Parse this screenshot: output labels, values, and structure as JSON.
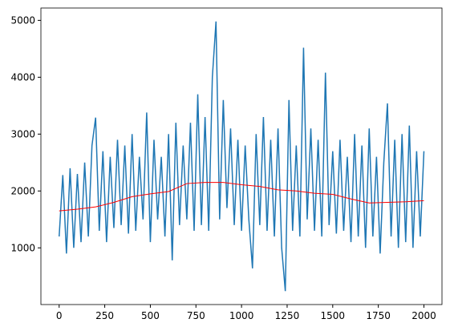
{
  "chart_data": {
    "type": "line",
    "series": [
      {
        "color": "#1f77b4",
        "x": [
          0,
          20,
          40,
          60,
          80,
          100,
          120,
          140,
          160,
          180,
          200,
          220,
          240,
          260,
          280,
          300,
          320,
          340,
          360,
          380,
          400,
          420,
          440,
          460,
          480,
          500,
          520,
          540,
          560,
          580,
          600,
          620,
          640,
          660,
          680,
          700,
          720,
          740,
          760,
          780,
          800,
          820,
          840,
          860,
          880,
          900,
          920,
          940,
          960,
          980,
          1000,
          1020,
          1040,
          1060,
          1080,
          1100,
          1120,
          1140,
          1160,
          1180,
          1200,
          1220,
          1240,
          1260,
          1280,
          1300,
          1320,
          1340,
          1360,
          1380,
          1400,
          1420,
          1440,
          1460,
          1480,
          1500,
          1520,
          1540,
          1560,
          1580,
          1600,
          1620,
          1640,
          1660,
          1680,
          1700,
          1720,
          1740,
          1760,
          1780,
          1800,
          1820,
          1840,
          1860,
          1880,
          1900,
          1920,
          1940,
          1960,
          1980,
          2000
        ],
        "values": [
          1200,
          2280,
          900,
          2400,
          1000,
          2300,
          1100,
          2500,
          1200,
          2800,
          3290,
          1300,
          2700,
          1100,
          2600,
          1350,
          2900,
          1400,
          2800,
          1250,
          3000,
          1300,
          2600,
          1500,
          3380,
          1100,
          2900,
          1500,
          2600,
          1200,
          3000,
          780,
          3200,
          1400,
          2800,
          1500,
          3200,
          1300,
          3700,
          1400,
          3300,
          1300,
          4000,
          4980,
          1500,
          3600,
          1700,
          3100,
          1400,
          2900,
          1300,
          2800,
          1500,
          640,
          3000,
          1400,
          3300,
          1300,
          2900,
          1200,
          3100,
          1000,
          240,
          3600,
          1300,
          2800,
          1200,
          4520,
          1500,
          3100,
          1300,
          2900,
          1200,
          4080,
          1400,
          2700,
          1250,
          2900,
          1300,
          2600,
          1100,
          3000,
          1200,
          2800,
          1000,
          3100,
          1200,
          2600,
          900,
          2500,
          3540,
          1200,
          2900,
          1000,
          3000,
          1100,
          3150,
          1000,
          2700,
          1200,
          2700
        ]
      },
      {
        "color": "#ff0000",
        "x": [
          0,
          100,
          200,
          300,
          400,
          500,
          600,
          700,
          800,
          900,
          1000,
          1100,
          1200,
          1300,
          1400,
          1500,
          1600,
          1700,
          1800,
          1900,
          2000
        ],
        "values": [
          1650,
          1680,
          1720,
          1800,
          1900,
          1950,
          1990,
          2130,
          2150,
          2150,
          2110,
          2080,
          2020,
          2000,
          1960,
          1940,
          1860,
          1790,
          1800,
          1810,
          1830
        ]
      }
    ],
    "xlim": [
      -100,
      2099
    ],
    "ylim": [
      3,
      5217
    ],
    "xticks": [
      0,
      250,
      500,
      750,
      1000,
      1250,
      1500,
      1750,
      2000
    ],
    "yticks": [
      1000,
      2000,
      3000,
      4000,
      5000
    ]
  }
}
